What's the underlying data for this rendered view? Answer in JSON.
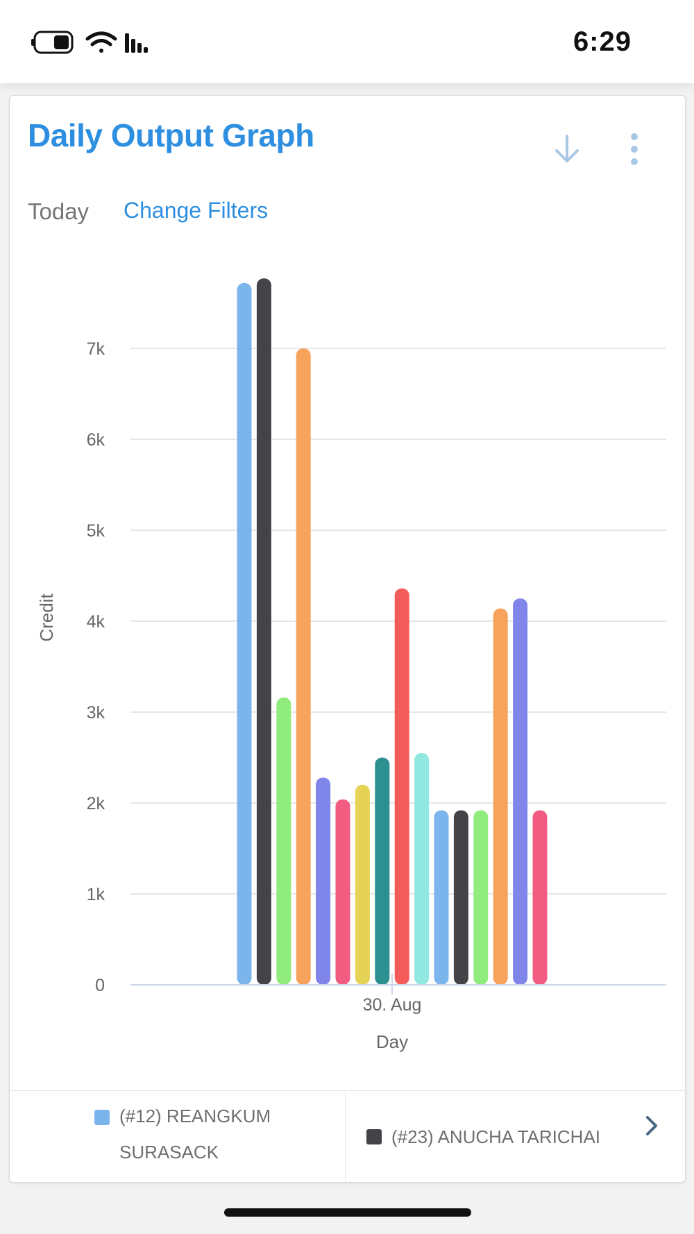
{
  "status_bar": {
    "time": "6:29"
  },
  "header": {
    "title": "Daily Output Graph",
    "download_icon": "arrow-down-icon",
    "menu_icon": "more-vertical-icon"
  },
  "filters": {
    "period": "Today",
    "change_filters_label": "Change Filters"
  },
  "chart_data": {
    "type": "bar",
    "categories": [
      "30. Aug"
    ],
    "xlabel": "Day",
    "ylabel": "Credit",
    "ylim": [
      0,
      7900
    ],
    "yticks": [
      {
        "value": 0,
        "label": "0"
      },
      {
        "value": 1000,
        "label": "1k"
      },
      {
        "value": 2000,
        "label": "2k"
      },
      {
        "value": 3000,
        "label": "3k"
      },
      {
        "value": 4000,
        "label": "4k"
      },
      {
        "value": 5000,
        "label": "5k"
      },
      {
        "value": 6000,
        "label": "6k"
      },
      {
        "value": 7000,
        "label": "7k"
      }
    ],
    "grid": true,
    "legend_position": "bottom",
    "series": [
      {
        "name": "(#12) REANGKUM SURASACK",
        "color": "#7cb5ec",
        "values": [
          7720
        ]
      },
      {
        "name": "(#23) ANUCHA TARICHAI",
        "color": "#434348",
        "values": [
          7770
        ]
      },
      {
        "color": "#90ed7d",
        "values": [
          3160
        ]
      },
      {
        "color": "#f7a35c",
        "values": [
          7000
        ]
      },
      {
        "color": "#8085e9",
        "values": [
          2280
        ]
      },
      {
        "color": "#f15c80",
        "values": [
          2040
        ]
      },
      {
        "color": "#e4d354",
        "values": [
          2200
        ]
      },
      {
        "color": "#2b908f",
        "values": [
          2500
        ]
      },
      {
        "color": "#f45b5b",
        "values": [
          4360
        ]
      },
      {
        "color": "#91e8e1",
        "values": [
          2550
        ]
      },
      {
        "color": "#7cb5ec",
        "values": [
          1920
        ]
      },
      {
        "color": "#434348",
        "values": [
          1920
        ]
      },
      {
        "color": "#90ed7d",
        "values": [
          1920
        ]
      },
      {
        "color": "#f7a35c",
        "values": [
          4140
        ]
      },
      {
        "color": "#8085e9",
        "values": [
          4250
        ]
      },
      {
        "color": "#f15c80",
        "values": [
          1920
        ]
      }
    ]
  }
}
